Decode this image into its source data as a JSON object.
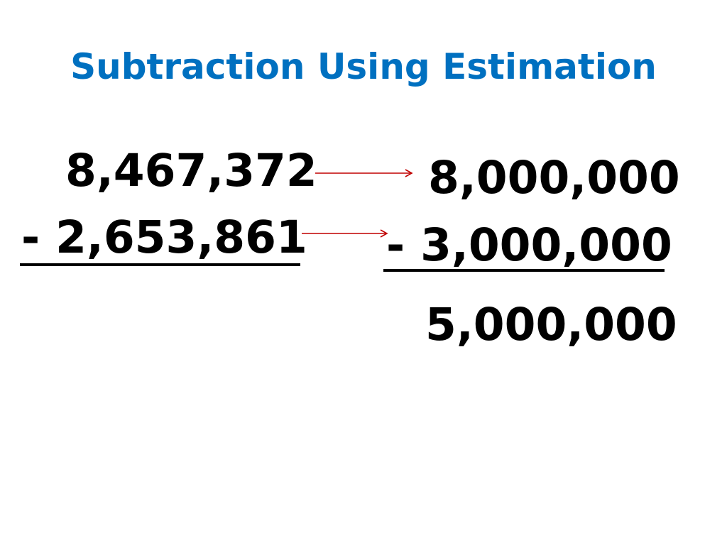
{
  "slide": {
    "title": "Subtraction Using Estimation",
    "title_color": "#0070C0",
    "arrow_color": "#C00000"
  },
  "original": {
    "minuend": "8,467,372",
    "subtrahend": "- 2,653,861"
  },
  "estimate": {
    "minuend": "8,000,000",
    "subtrahend": "- 3,000,000",
    "difference": "5,000,000"
  }
}
